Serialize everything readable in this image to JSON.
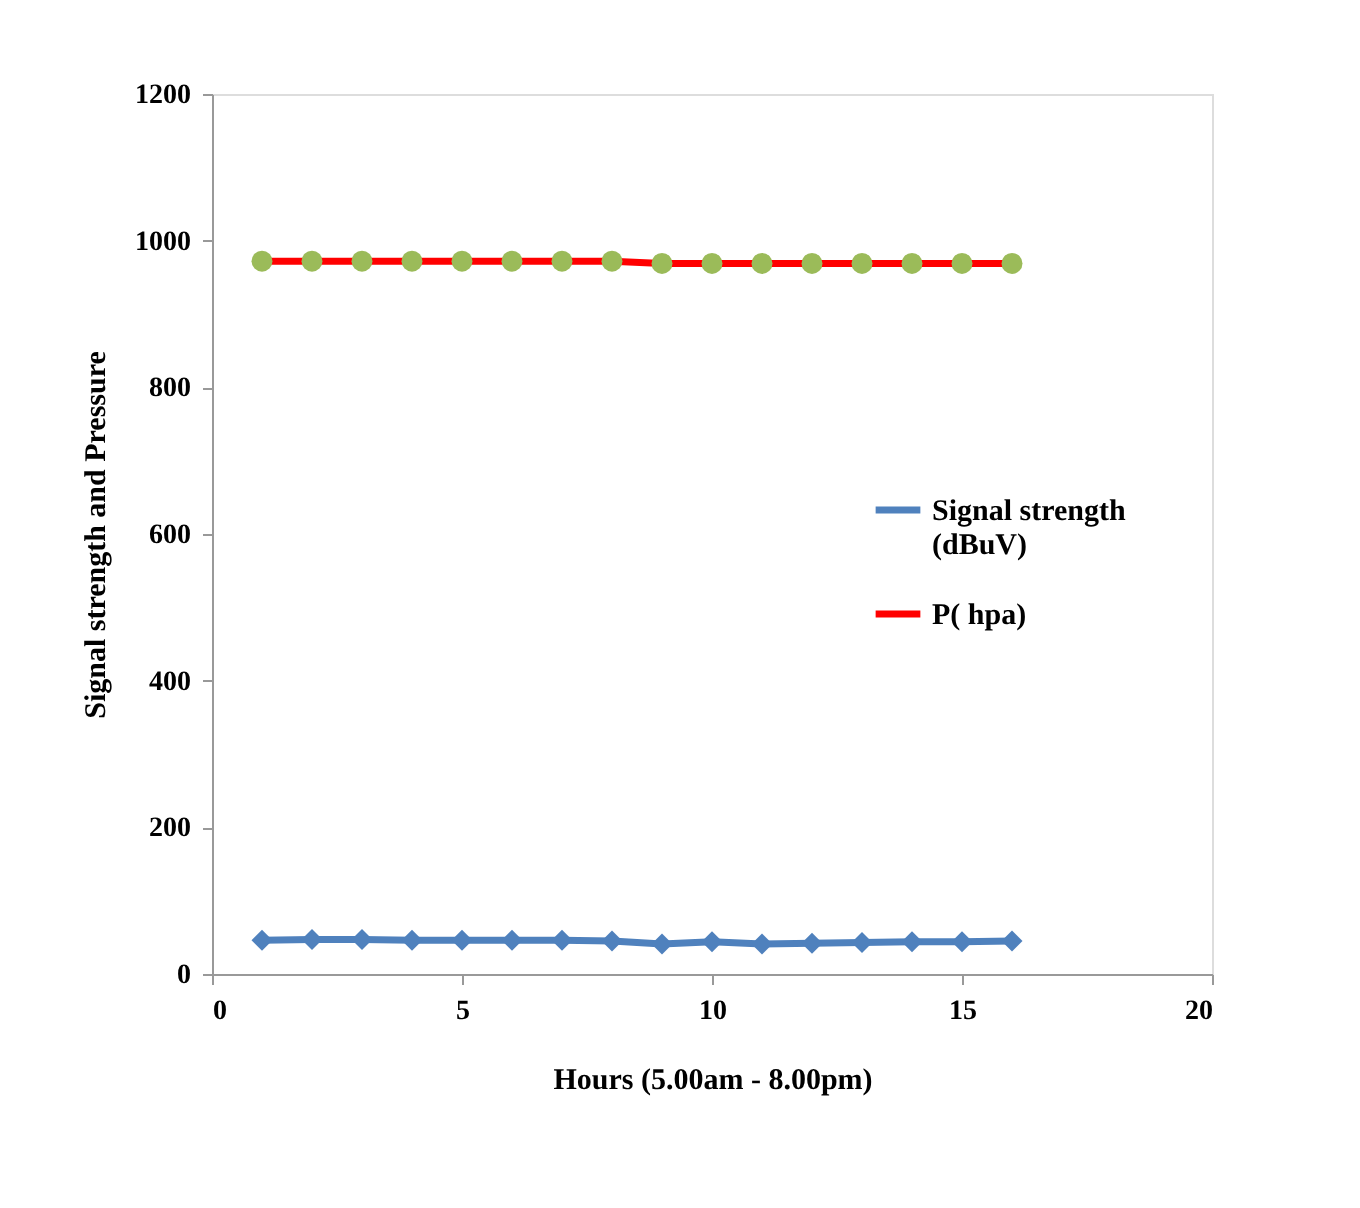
{
  "chart_data": {
    "type": "line",
    "xlabel": "Hours (5.00am - 8.00pm)",
    "ylabel": "Signal strength and Pressure",
    "x": [
      1,
      2,
      3,
      4,
      5,
      6,
      7,
      8,
      9,
      10,
      11,
      12,
      13,
      14,
      15,
      16
    ],
    "series": [
      {
        "name": "Signal strength (dBuV)",
        "color": "#4f81bd",
        "marker": "diamond",
        "values": [
          46,
          47,
          47,
          46,
          46,
          46,
          46,
          45,
          41,
          44,
          41,
          42,
          43,
          44,
          44,
          45
        ]
      },
      {
        "name": "P( hpa)",
        "color": "#ff0000",
        "marker": "circle",
        "colors": [
          "#9bbb59",
          "#9bbb59",
          "#9bbb59",
          "#9bbb59",
          "#9bbb59",
          "#9bbb59",
          "#9bbb59",
          "#9bbb59",
          "#9bbb59",
          "#9bbb59",
          "#9bbb59",
          "#9bbb59",
          "#9bbb59",
          "#9bbb59",
          "#9bbb59",
          "#9bbb59"
        ],
        "values": [
          972,
          972,
          972,
          972,
          972,
          972,
          972,
          972,
          969,
          969,
          969,
          969,
          969,
          969,
          969,
          969
        ]
      }
    ],
    "xlim": [
      0,
      20
    ],
    "xticks": [
      0,
      5,
      10,
      15,
      20
    ],
    "ylim": [
      0,
      1200
    ],
    "yticks": [
      0,
      200,
      400,
      600,
      800,
      1000,
      1200
    ],
    "grid": false,
    "legend": "right"
  }
}
